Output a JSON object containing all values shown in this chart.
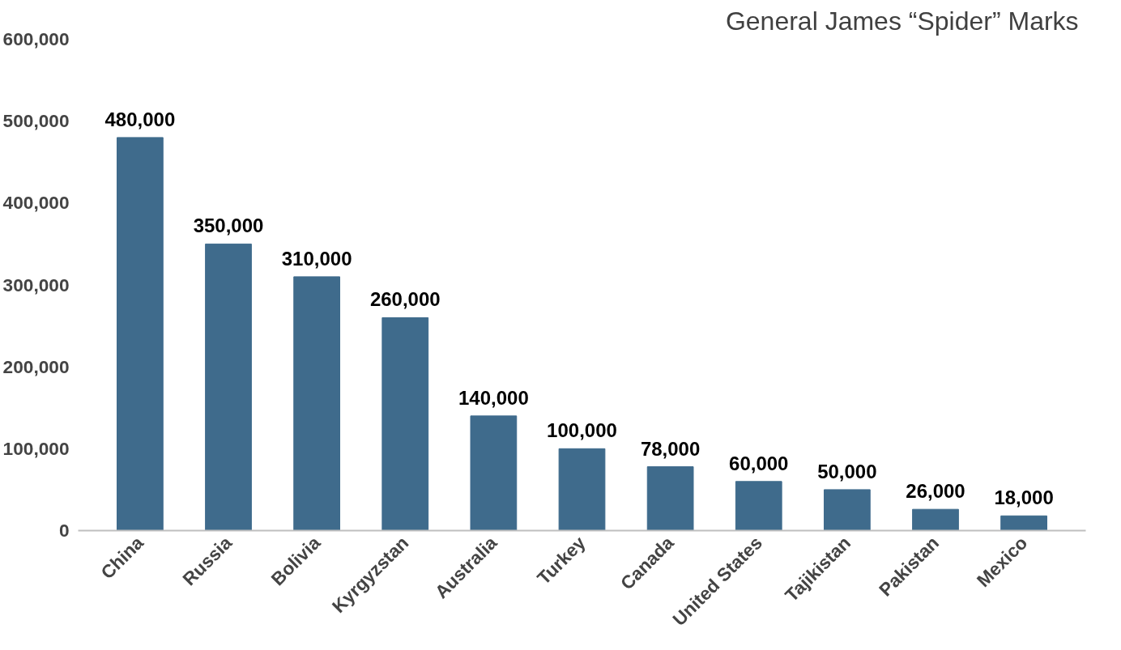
{
  "chart_data": {
    "type": "bar",
    "title": "General  James “Spider” Marks",
    "categories": [
      "China",
      "Russia",
      "Bolivia",
      "Kyrgyzstan",
      "Australia",
      "Turkey",
      "Canada",
      "United States",
      "Tajikistan",
      "Pakistan",
      "Mexico"
    ],
    "values": [
      480000,
      350000,
      310000,
      260000,
      140000,
      100000,
      78000,
      60000,
      50000,
      26000,
      18000
    ],
    "color": "#3f6b8c",
    "ylim": [
      0,
      600000
    ],
    "yticks": [
      {
        "value": 0,
        "label": "0"
      },
      {
        "value": 100000,
        "label": "100,000"
      },
      {
        "value": 200000,
        "label": "200,000"
      },
      {
        "value": 300000,
        "label": "300,000"
      },
      {
        "value": 400000,
        "label": "400,000"
      },
      {
        "value": 500000,
        "label": "500,000"
      },
      {
        "value": 600000,
        "label": "600,000"
      }
    ],
    "grid": false,
    "value_labels": [
      "480,000",
      "350,000",
      "310,000",
      "260,000",
      "140,000",
      "100,000",
      "78,000",
      "60,000",
      "50,000",
      "26,000",
      "18,000"
    ]
  }
}
